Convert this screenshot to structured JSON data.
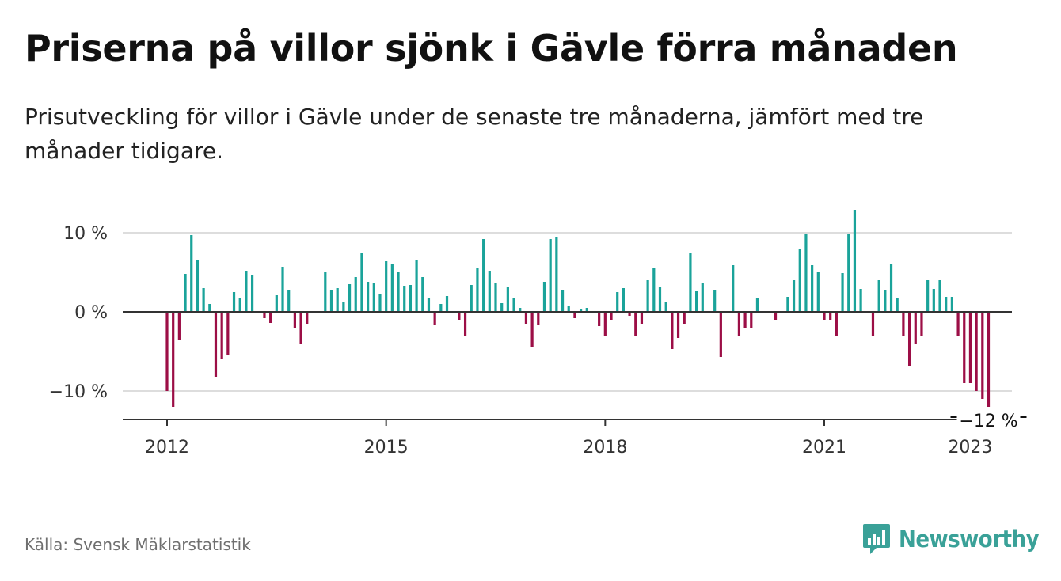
{
  "header": {
    "title": "Priserna på villor sjönk i Gävle förra månaden",
    "subtitle": "Prisutveckling för villor i Gävle under de senaste tre månaderna, jämfört med tre månader tidigare."
  },
  "footer": {
    "source": "Källa: Svensk Mäklarstatistik",
    "brand": "Newsworthy",
    "brand_icon": "bar-chart-speech-bubble-icon"
  },
  "colors": {
    "positive": "#1aa39a",
    "negative": "#9c0e46",
    "grid": "#dddddd",
    "axis": "#333333",
    "brand": "#3aa198"
  },
  "chart_data": {
    "type": "bar",
    "x_start": "2012-01",
    "x_end": "2023-01",
    "ylim": [
      -13.5,
      13
    ],
    "y_ticks": [
      {
        "value": 10,
        "label": "10 %"
      },
      {
        "value": 0,
        "label": "0 %"
      },
      {
        "value": -10,
        "label": "−10 %"
      }
    ],
    "x_ticks": [
      {
        "date": "2012-01",
        "label": "2012"
      },
      {
        "date": "2015-01",
        "label": "2015"
      },
      {
        "date": "2018-01",
        "label": "2018"
      },
      {
        "date": "2021-01",
        "label": "2021"
      },
      {
        "date": "2023-01",
        "label": "2023"
      }
    ],
    "last_value_label": "−12 %",
    "grid": true,
    "values": [
      -10,
      -12,
      -3.5,
      4.8,
      9.7,
      6.5,
      3,
      1,
      -8.2,
      -6,
      -5.5,
      2.5,
      1.8,
      5.2,
      4.6,
      0,
      -0.8,
      -1.4,
      2.1,
      5.7,
      2.8,
      -2,
      -4,
      -1.5,
      0,
      0,
      5,
      2.8,
      3,
      1.2,
      3.5,
      4.4,
      7.5,
      3.8,
      3.6,
      2.2,
      6.4,
      6,
      5,
      3.3,
      3.4,
      6.5,
      4.4,
      1.8,
      -1.6,
      1,
      2,
      0,
      -1,
      -3,
      3.4,
      5.6,
      9.2,
      5.2,
      3.7,
      1.1,
      3.1,
      1.8,
      0.5,
      -1.5,
      -4.5,
      -1.6,
      3.8,
      9.2,
      9.4,
      2.7,
      0.8,
      -0.8,
      0.3,
      0.5,
      0,
      -1.8,
      -3,
      -1,
      2.5,
      3,
      -0.5,
      -3,
      -1.5,
      4,
      5.5,
      3.1,
      1.2,
      -4.7,
      -3.3,
      -1.5,
      7.5,
      2.6,
      3.6,
      0,
      2.7,
      -5.7,
      0,
      5.9,
      -3,
      -2,
      -2,
      1.8,
      0,
      0,
      -1,
      0,
      1.9,
      4,
      8,
      9.9,
      5.9,
      5,
      -1,
      -1,
      -3,
      4.9,
      9.9,
      12.9,
      2.9,
      0,
      -3,
      4,
      2.8,
      6,
      1.8,
      -3,
      -6.9,
      -4,
      -3,
      4,
      2.9,
      4,
      1.9,
      1.9,
      -3,
      -9,
      -9,
      -10,
      -11,
      -12
    ]
  }
}
